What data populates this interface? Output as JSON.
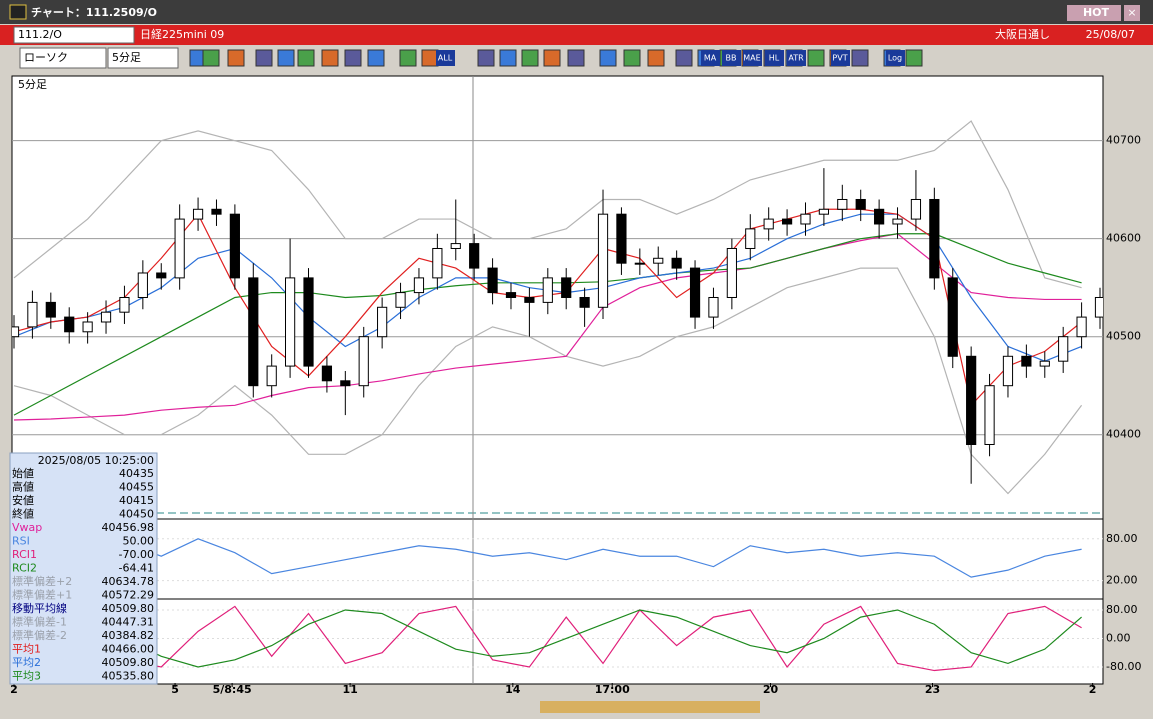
{
  "window": {
    "title": "チャート：111.2509/O",
    "hot": "HOT"
  },
  "symbol_bar": {
    "code": "111.2/O",
    "name": "日経225mini 09",
    "session": "大阪日通し",
    "date": "25/08/07"
  },
  "toolbar": {
    "chart_style": "ローソク",
    "interval": "5分足",
    "buttons": [
      "ALL",
      "MA",
      "BB",
      "MAE",
      "HL",
      "ATR",
      "PVT",
      "Log"
    ]
  },
  "chart_data": [
    {
      "type": "candlestick",
      "title": "5分足",
      "up_color": "#ffffff",
      "down_color": "#000000",
      "grid": true,
      "xlim": [
        0,
        59
      ],
      "ylim": [
        40315,
        40766
      ],
      "yticks": [
        40400,
        40500,
        40600,
        40700
      ],
      "x": [
        0,
        1,
        2,
        3,
        4,
        5,
        6,
        7,
        8,
        9,
        10,
        11,
        12,
        13,
        14,
        15,
        16,
        17,
        18,
        19,
        20,
        21,
        22,
        23,
        24,
        25,
        26,
        27,
        28,
        29,
        30,
        31,
        32,
        33,
        34,
        35,
        36,
        37,
        38,
        39,
        40,
        41,
        42,
        43,
        44,
        45,
        46,
        47,
        48,
        49,
        50,
        51,
        52,
        53,
        54,
        55,
        56,
        57,
        58,
        59
      ],
      "open": [
        40500,
        40510,
        40535,
        40520,
        40505,
        40515,
        40525,
        40540,
        40565,
        40560,
        40620,
        40630,
        40625,
        40560,
        40450,
        40470,
        40560,
        40470,
        40455,
        40450,
        40500,
        40530,
        40545,
        40560,
        40590,
        40595,
        40570,
        40545,
        40540,
        40535,
        40560,
        40540,
        40530,
        40625,
        40575,
        40575,
        40580,
        40570,
        40520,
        40540,
        40590,
        40610,
        40620,
        40615,
        40625,
        40630,
        40640,
        40630,
        40615,
        40620,
        40640,
        40560,
        40480,
        40390,
        40450,
        40480,
        40470,
        40475,
        40500,
        40520
      ],
      "high": [
        40522,
        40547,
        40545,
        40530,
        40525,
        40537,
        40552,
        40578,
        40575,
        40635,
        40642,
        40640,
        40635,
        40575,
        40482,
        40600,
        40570,
        40480,
        40465,
        40510,
        40540,
        40555,
        40570,
        40605,
        40640,
        40605,
        40580,
        40555,
        40550,
        40570,
        40570,
        40550,
        40650,
        40632,
        40590,
        40592,
        40588,
        40578,
        40550,
        40600,
        40625,
        40632,
        40630,
        40637,
        40672,
        40655,
        40650,
        40640,
        40632,
        40670,
        40652,
        40570,
        40490,
        40462,
        40490,
        40492,
        40485,
        40510,
        40535,
        40550
      ],
      "low": [
        40488,
        40498,
        40508,
        40493,
        40493,
        40503,
        40513,
        40528,
        40548,
        40548,
        40608,
        40613,
        40548,
        40438,
        40438,
        40458,
        40458,
        40443,
        40420,
        40438,
        40488,
        40518,
        40533,
        40548,
        40578,
        40558,
        40533,
        40528,
        40500,
        40523,
        40528,
        40510,
        40518,
        40563,
        40563,
        40563,
        40558,
        40508,
        40508,
        40528,
        40578,
        40598,
        40603,
        40603,
        40613,
        40618,
        40618,
        40600,
        40600,
        40608,
        40548,
        40468,
        40350,
        40378,
        40438,
        40458,
        40458,
        40463,
        40488,
        40508
      ],
      "close": [
        40510,
        40535,
        40520,
        40505,
        40515,
        40525,
        40540,
        40565,
        40560,
        40620,
        40630,
        40625,
        40560,
        40450,
        40470,
        40560,
        40470,
        40455,
        40450,
        40500,
        40530,
        40545,
        40560,
        40590,
        40595,
        40570,
        40545,
        40540,
        40535,
        40560,
        40540,
        40530,
        40625,
        40575,
        40575,
        40580,
        40570,
        40520,
        40540,
        40590,
        40610,
        40620,
        40615,
        40625,
        40630,
        40640,
        40630,
        40615,
        40620,
        40640,
        40560,
        40480,
        40390,
        40450,
        40480,
        40470,
        40475,
        40500,
        40520,
        40540
      ],
      "series": [
        {
          "color": "#b4b4b4",
          "x": [
            0,
            2,
            4,
            6,
            8,
            10,
            12,
            14,
            16,
            18,
            20,
            22,
            24,
            26,
            28,
            30,
            32,
            34,
            36,
            38,
            40,
            42,
            44,
            46,
            48,
            50,
            52,
            54,
            56,
            58
          ],
          "values": [
            40560,
            40590,
            40620,
            40660,
            40700,
            40710,
            40700,
            40690,
            40650,
            40600,
            40600,
            40620,
            40620,
            40600,
            40600,
            40610,
            40640,
            40640,
            40625,
            40640,
            40660,
            40670,
            40680,
            40680,
            40680,
            40690,
            40720,
            40650,
            40560,
            40550
          ]
        },
        {
          "color": "#b4b4b4",
          "x": [
            0,
            2,
            4,
            6,
            8,
            10,
            12,
            14,
            16,
            18,
            20,
            22,
            24,
            26,
            28,
            30,
            32,
            34,
            36,
            38,
            40,
            42,
            44,
            46,
            48,
            50,
            52,
            54,
            56,
            58
          ],
          "values": [
            40450,
            40440,
            40420,
            40400,
            40400,
            40420,
            40450,
            40420,
            40380,
            40380,
            40400,
            40450,
            40490,
            40510,
            40500,
            40480,
            40470,
            40480,
            40500,
            40510,
            40530,
            40550,
            40560,
            40570,
            40570,
            40500,
            40380,
            40340,
            40380,
            40430
          ]
        },
        {
          "color": "#e0209a",
          "x": [
            0,
            2,
            4,
            6,
            8,
            10,
            12,
            14,
            16,
            18,
            20,
            22,
            24,
            26,
            28,
            30,
            32,
            34,
            36,
            38,
            40,
            42,
            44,
            46,
            48,
            50,
            52,
            54,
            56,
            58
          ],
          "values": [
            40415,
            40416,
            40418,
            40420,
            40425,
            40428,
            40430,
            40440,
            40448,
            40450,
            40455,
            40462,
            40468,
            40472,
            40476,
            40480,
            40530,
            40550,
            40560,
            40565,
            40570,
            40580,
            40590,
            40598,
            40605,
            40575,
            40545,
            40540,
            40538,
            40538
          ]
        },
        {
          "color": "#1e8a1e",
          "x": [
            0,
            2,
            4,
            6,
            8,
            10,
            12,
            14,
            16,
            18,
            20,
            22,
            24,
            26,
            28,
            30,
            32,
            34,
            36,
            38,
            40,
            42,
            44,
            46,
            48,
            50,
            52,
            54,
            56,
            58
          ],
          "values": [
            40420,
            40440,
            40460,
            40480,
            40500,
            40520,
            40540,
            40545,
            40545,
            40540,
            40542,
            40548,
            40552,
            40555,
            40555,
            40555,
            40556,
            40560,
            40565,
            40568,
            40570,
            40580,
            40590,
            40600,
            40605,
            40605,
            40590,
            40575,
            40565,
            40555
          ]
        },
        {
          "color": "#2a6fd8",
          "x": [
            0,
            2,
            4,
            6,
            8,
            10,
            12,
            14,
            16,
            18,
            20,
            22,
            24,
            26,
            28,
            30,
            32,
            34,
            36,
            38,
            40,
            42,
            44,
            46,
            48,
            50,
            52,
            54,
            56,
            58
          ],
          "values": [
            40500,
            40515,
            40520,
            40530,
            40550,
            40580,
            40590,
            40560,
            40520,
            40490,
            40510,
            40540,
            40560,
            40560,
            40550,
            40545,
            40550,
            40560,
            40565,
            40570,
            40580,
            40600,
            40615,
            40625,
            40625,
            40600,
            40540,
            40490,
            40475,
            40490
          ]
        },
        {
          "color": "#e02020",
          "x": [
            0,
            2,
            4,
            6,
            8,
            10,
            12,
            14,
            16,
            18,
            20,
            22,
            24,
            26,
            28,
            30,
            32,
            34,
            36,
            38,
            40,
            42,
            44,
            46,
            48,
            50,
            52,
            54,
            56,
            58
          ],
          "values": [
            40505,
            40515,
            40520,
            40540,
            40580,
            40625,
            40550,
            40490,
            40460,
            40500,
            40545,
            40580,
            40570,
            40545,
            40540,
            40545,
            40590,
            40580,
            40540,
            40565,
            40610,
            40620,
            40630,
            40630,
            40625,
            40600,
            40430,
            40470,
            40485,
            40515
          ]
        }
      ]
    },
    {
      "type": "line",
      "xlim": [
        0,
        59
      ],
      "ylim": [
        -5,
        107
      ],
      "yticks": [
        {
          "value": 80,
          "label": "80.00"
        },
        {
          "value": 20,
          "label": "20.00"
        }
      ],
      "series": [
        {
          "color": "#4a86e0",
          "x": [
            0,
            2,
            4,
            6,
            8,
            10,
            12,
            14,
            16,
            18,
            20,
            22,
            24,
            26,
            28,
            30,
            32,
            34,
            36,
            38,
            40,
            42,
            44,
            46,
            48,
            50,
            52,
            54,
            56,
            58
          ],
          "values": [
            70,
            65,
            60,
            75,
            55,
            80,
            60,
            30,
            40,
            50,
            60,
            70,
            65,
            55,
            60,
            50,
            65,
            55,
            55,
            40,
            70,
            60,
            65,
            55,
            60,
            55,
            25,
            35,
            55,
            65
          ]
        }
      ]
    },
    {
      "type": "line",
      "xlim": [
        0,
        59
      ],
      "ylim": [
        -125,
        108
      ],
      "yticks": [
        {
          "value": 80,
          "label": "80.00"
        },
        {
          "value": 0,
          "label": "0.00"
        },
        {
          "value": -80,
          "label": "-80.00"
        }
      ],
      "xticks": [
        {
          "value": 0,
          "label": "2"
        },
        {
          "value": 8.75,
          "label": "5"
        },
        {
          "value": 11.85,
          "label": "5/8:45"
        },
        {
          "value": 18.26,
          "label": "11"
        },
        {
          "value": 27.1,
          "label": "14"
        },
        {
          "value": 32.5,
          "label": "17:00"
        },
        {
          "value": 41.1,
          "label": "20"
        },
        {
          "value": 49.9,
          "label": "23"
        },
        {
          "value": 58.6,
          "label": "2"
        }
      ],
      "series": [
        {
          "color": "#e0207a",
          "x": [
            0,
            2,
            4,
            6,
            8,
            10,
            12,
            14,
            16,
            18,
            20,
            22,
            24,
            26,
            28,
            30,
            32,
            34,
            36,
            38,
            40,
            42,
            44,
            46,
            48,
            50,
            52,
            54,
            56,
            58
          ],
          "values": [
            60,
            85,
            40,
            -60,
            -80,
            20,
            90,
            -50,
            70,
            -70,
            -40,
            70,
            90,
            -60,
            -80,
            60,
            -70,
            80,
            -20,
            60,
            80,
            -80,
            40,
            90,
            -70,
            -90,
            -80,
            70,
            90,
            30
          ]
        },
        {
          "color": "#1e8a1e",
          "x": [
            0,
            2,
            4,
            6,
            8,
            10,
            12,
            14,
            16,
            18,
            20,
            22,
            24,
            26,
            28,
            30,
            32,
            34,
            36,
            38,
            40,
            42,
            44,
            46,
            48,
            50,
            52,
            54,
            56,
            58
          ],
          "values": [
            80,
            70,
            40,
            0,
            -50,
            -80,
            -60,
            -20,
            40,
            80,
            70,
            20,
            -30,
            -50,
            -40,
            0,
            40,
            80,
            60,
            20,
            -20,
            -40,
            0,
            60,
            80,
            40,
            -40,
            -70,
            -30,
            60
          ]
        }
      ]
    }
  ],
  "info_panel": {
    "datetime": "2025/08/05 10:25:00",
    "rows": [
      {
        "label": "始値",
        "value": "40435",
        "color": "#000000"
      },
      {
        "label": "高値",
        "value": "40455",
        "color": "#000000"
      },
      {
        "label": "安値",
        "value": "40415",
        "color": "#000000"
      },
      {
        "label": "終値",
        "value": "40450",
        "color": "#000000"
      },
      {
        "label": "Vwap",
        "value": "40456.98",
        "color": "#e0209a"
      },
      {
        "label": "RSI",
        "value": "50.00",
        "color": "#4a86e0"
      },
      {
        "label": "RCI1",
        "value": "-70.00",
        "color": "#e0207a"
      },
      {
        "label": "RCI2",
        "value": "-64.41",
        "color": "#1e8a1e"
      },
      {
        "label": "標準偏差+2",
        "value": "40634.78",
        "color": "#9aa0aa"
      },
      {
        "label": "標準偏差+1",
        "value": "40572.29",
        "color": "#9aa0aa"
      },
      {
        "label": "移動平均線",
        "value": "40509.80",
        "color": "#000080"
      },
      {
        "label": "標準偏差-1",
        "value": "40447.31",
        "color": "#9aa0aa"
      },
      {
        "label": "標準偏差-2",
        "value": "40384.82",
        "color": "#9aa0aa"
      },
      {
        "label": "平均1",
        "value": "40466.00",
        "color": "#e02020"
      },
      {
        "label": "平均2",
        "value": "40509.80",
        "color": "#2a6fd8"
      },
      {
        "label": "平均3",
        "value": "40535.80",
        "color": "#1e8a1e"
      }
    ]
  }
}
